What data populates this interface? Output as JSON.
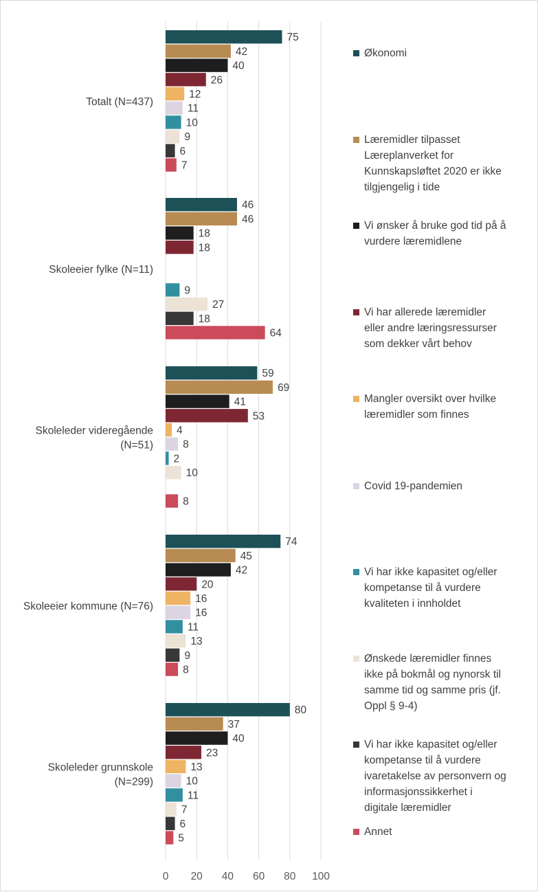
{
  "chart_data": {
    "type": "bar",
    "orientation": "horizontal",
    "categories": [
      "Totalt (N=437)",
      "Skoleeier fylke (N=11)",
      "Skoleleder videregående (N=51)",
      "Skoleeier kommune (N=76)",
      "Skoleleder grunnskole (N=299)"
    ],
    "category_label_lines": [
      [
        "Totalt (N=437)"
      ],
      [
        "Skoleeier fylke (N=11)"
      ],
      [
        "Skoleleder videregående",
        "(N=51)"
      ],
      [
        "Skoleeier kommune (N=76)"
      ],
      [
        "Skoleleder grunnskole",
        "(N=299)"
      ]
    ],
    "series": [
      {
        "name": "Økonomi",
        "color": "#1d5158",
        "values": [
          75,
          46,
          59,
          74,
          80
        ]
      },
      {
        "name": "Læremidler tilpasset Læreplanverket for Kunnskapsløftet 2020 er ikke tilgjengelig i tide",
        "color": "#b78b52",
        "values": [
          42,
          46,
          69,
          45,
          37
        ]
      },
      {
        "name": "Vi ønsker å bruke god tid på å vurdere læremidlene",
        "color": "#1e1e1e",
        "values": [
          40,
          18,
          41,
          42,
          40
        ]
      },
      {
        "name": "Vi har allerede læremidler eller andre læringsressurser som dekker vårt behov",
        "color": "#7e2733",
        "values": [
          26,
          18,
          53,
          20,
          23
        ]
      },
      {
        "name": "Mangler oversikt over hvilke læremidler som finnes",
        "color": "#eeb363",
        "values": [
          12,
          null,
          4,
          16,
          13
        ]
      },
      {
        "name": "Covid 19-pandemien",
        "color": "#dcd4e3",
        "values": [
          11,
          null,
          8,
          16,
          10
        ]
      },
      {
        "name": "Vi har ikke kapasitet og/eller kompetanse til å vurdere kvaliteten i innholdet",
        "color": "#318fa0",
        "values": [
          10,
          9,
          2,
          11,
          11
        ]
      },
      {
        "name": "Ønskede læremidler finnes ikke på bokmål og nynorsk til samme tid og samme pris (jf. Oppl § 9-4)",
        "color": "#ece2d5",
        "values": [
          9,
          27,
          10,
          13,
          7
        ]
      },
      {
        "name": "Vi har ikke kapasitet og/eller kompetanse til å vurdere ivaretakelse av personvern og informasjonssikkerhet i digitale læremidler",
        "color": "#383838",
        "values": [
          6,
          18,
          null,
          9,
          6
        ]
      },
      {
        "name": "Annet",
        "color": "#cc4b5b",
        "values": [
          7,
          64,
          8,
          8,
          5
        ]
      }
    ],
    "legend_label_lines": [
      [
        "Økonomi"
      ],
      [
        "Læremidler tilpasset",
        "Læreplanverket for",
        "Kunnskapsløftet 2020 er ikke",
        "tilgjengelig i tide"
      ],
      [
        "Vi ønsker å bruke god tid på å",
        "vurdere læremidlene"
      ],
      [
        "Vi har allerede læremidler",
        "eller andre læringsressurser",
        "som dekker vårt behov"
      ],
      [
        "Mangler oversikt over hvilke",
        "læremidler som finnes"
      ],
      [
        "Covid 19-pandemien"
      ],
      [
        "Vi har ikke kapasitet og/eller",
        "kompetanse til å vurdere",
        "kvaliteten i innholdet"
      ],
      [
        "Ønskede læremidler finnes",
        "ikke på bokmål og nynorsk til",
        "samme tid og samme pris (jf.",
        "Oppl § 9-4)"
      ],
      [
        "Vi har ikke kapasitet og/eller",
        "kompetanse til å vurdere",
        "ivaretakelse av personvern og",
        "informasjonssikkerhet i",
        "digitale læremidler"
      ],
      [
        "Annet"
      ]
    ],
    "xlim": [
      0,
      100
    ],
    "xticks": [
      0,
      20,
      40,
      60,
      80,
      100
    ],
    "grid": "vertical",
    "legend_position": "right"
  }
}
